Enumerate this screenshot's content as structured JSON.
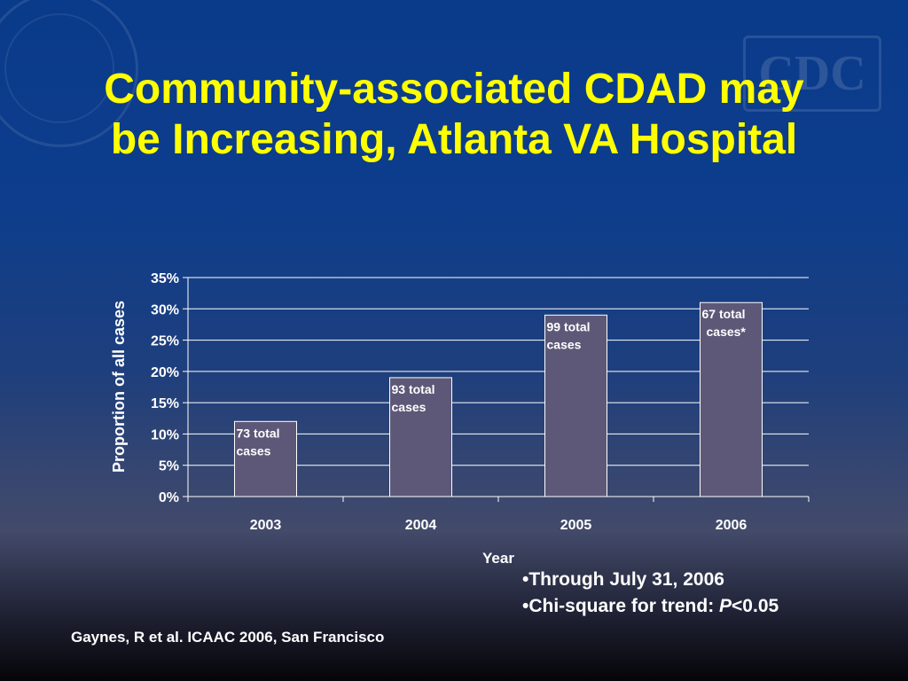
{
  "slide": {
    "title": "Community-associated CDAD may\nbe Increasing, Atlanta VA Hospital",
    "watermark_logo_text": "CDC",
    "notes": [
      "•Through July 31, 2006",
      "•Chi-square for trend: "
    ],
    "chi_square_p_label": "P",
    "chi_square_value": "<0.05",
    "citation": "Gaynes, R et al. ICAAC 2006, San Francisco"
  },
  "colors": {
    "title": "#ffff00",
    "bar_fill": "#5e5878",
    "text": "#ffffff"
  },
  "chart_data": {
    "type": "bar",
    "categories": [
      "2003",
      "2004",
      "2005",
      "2006"
    ],
    "values": [
      12,
      19,
      29,
      31
    ],
    "value_unit": "%",
    "data_labels": [
      [
        "73 total",
        "cases"
      ],
      [
        "93 total",
        "cases"
      ],
      [
        "99 total",
        "cases"
      ],
      [
        "67 total",
        "cases*"
      ]
    ],
    "title": "",
    "xlabel": "Year",
    "ylabel": "Proportion of all cases",
    "ylim": [
      0,
      35
    ],
    "yticks": [
      "0%",
      "5%",
      "10%",
      "15%",
      "20%",
      "25%",
      "30%",
      "35%"
    ],
    "grid": true,
    "legend": "none"
  }
}
